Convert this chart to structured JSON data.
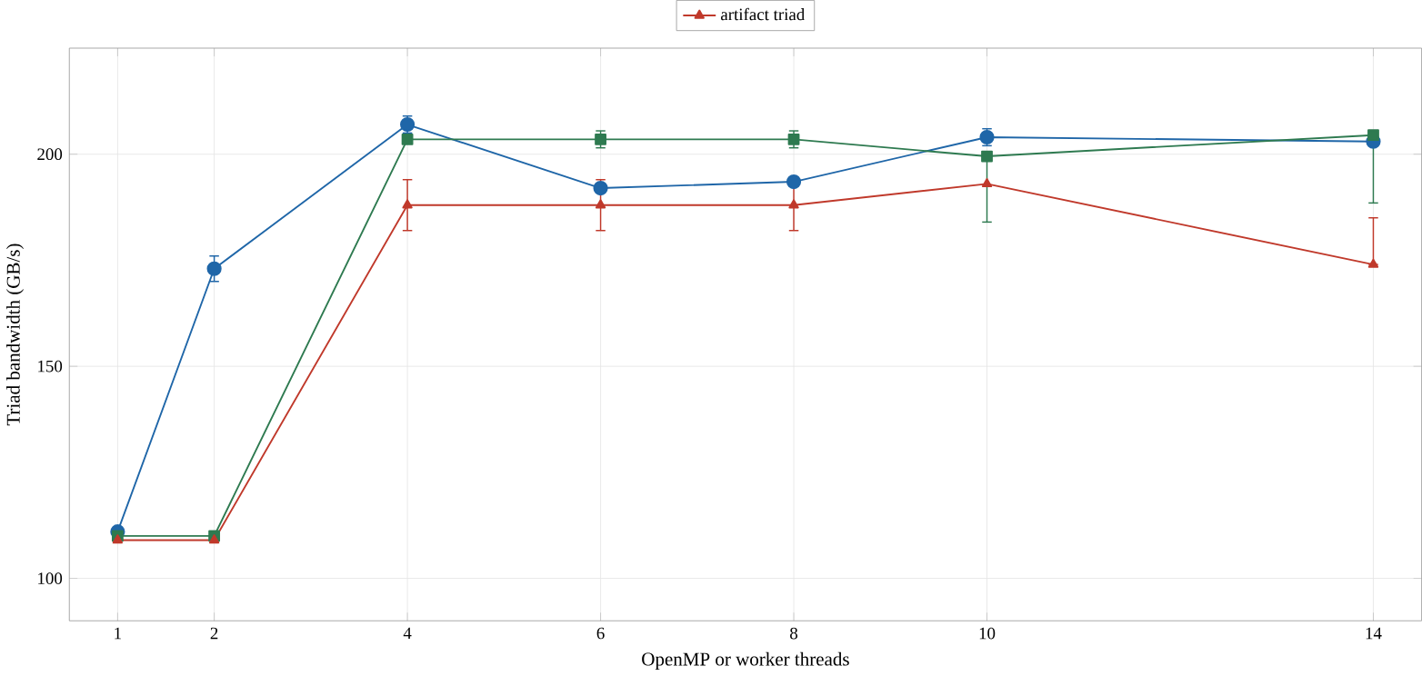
{
  "chart_data": {
    "type": "line",
    "xlabel": "OpenMP or worker threads",
    "ylabel": "Triad bandwidth (GB/s)",
    "x": [
      1,
      2,
      4,
      6,
      8,
      10,
      14
    ],
    "series": [
      {
        "color": "#1f66a8",
        "marker": "circle",
        "values": [
          111,
          173,
          207,
          192,
          193.5,
          204,
          203
        ],
        "errors": [
          null,
          3,
          2,
          null,
          null,
          2,
          null
        ]
      },
      {
        "color": "#2e7a50",
        "marker": "square",
        "values": [
          110,
          110,
          203.5,
          203.5,
          203.5,
          199.5,
          204.5
        ],
        "errors": [
          null,
          null,
          null,
          2,
          2,
          [
            184,
            199.5
          ],
          [
            188.5,
            204.5
          ]
        ]
      },
      {
        "name": "artifact triad",
        "color": "#c0392b",
        "marker": "triangle",
        "values": [
          109,
          109,
          188,
          188,
          188,
          193,
          174
        ],
        "errors": [
          null,
          null,
          6,
          6,
          6,
          null,
          [
            174,
            185
          ]
        ]
      }
    ],
    "xlim": [
      0.5,
      14.5
    ],
    "ylim": [
      90,
      225
    ],
    "xticks": [
      1,
      2,
      4,
      6,
      8,
      10,
      14
    ],
    "yticks": [
      100,
      150,
      200
    ],
    "grid": true,
    "legend": "top"
  }
}
